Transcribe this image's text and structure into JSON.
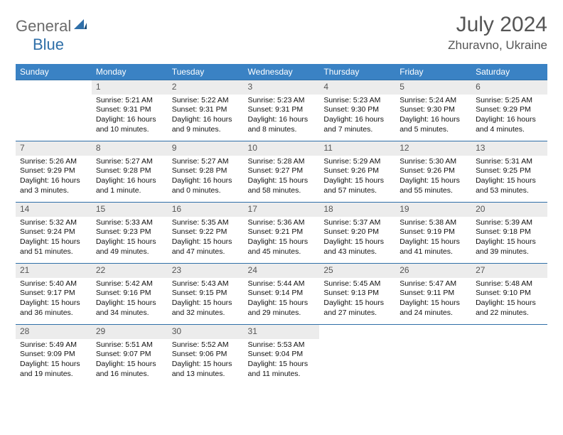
{
  "logo": {
    "text1": "General",
    "text2": "Blue"
  },
  "title": {
    "month": "July 2024",
    "location": "Zhuravno, Ukraine"
  },
  "weekdays": [
    "Sunday",
    "Monday",
    "Tuesday",
    "Wednesday",
    "Thursday",
    "Friday",
    "Saturday"
  ],
  "colors": {
    "header_bg": "#3a82c4",
    "daynum_bg": "#ececec",
    "border": "#2f6fa8"
  },
  "weeks": [
    [
      {
        "num": "",
        "sunrise": "",
        "sunset": "",
        "daylight": ""
      },
      {
        "num": "1",
        "sunrise": "Sunrise: 5:21 AM",
        "sunset": "Sunset: 9:31 PM",
        "daylight": "Daylight: 16 hours and 10 minutes."
      },
      {
        "num": "2",
        "sunrise": "Sunrise: 5:22 AM",
        "sunset": "Sunset: 9:31 PM",
        "daylight": "Daylight: 16 hours and 9 minutes."
      },
      {
        "num": "3",
        "sunrise": "Sunrise: 5:23 AM",
        "sunset": "Sunset: 9:31 PM",
        "daylight": "Daylight: 16 hours and 8 minutes."
      },
      {
        "num": "4",
        "sunrise": "Sunrise: 5:23 AM",
        "sunset": "Sunset: 9:30 PM",
        "daylight": "Daylight: 16 hours and 7 minutes."
      },
      {
        "num": "5",
        "sunrise": "Sunrise: 5:24 AM",
        "sunset": "Sunset: 9:30 PM",
        "daylight": "Daylight: 16 hours and 5 minutes."
      },
      {
        "num": "6",
        "sunrise": "Sunrise: 5:25 AM",
        "sunset": "Sunset: 9:29 PM",
        "daylight": "Daylight: 16 hours and 4 minutes."
      }
    ],
    [
      {
        "num": "7",
        "sunrise": "Sunrise: 5:26 AM",
        "sunset": "Sunset: 9:29 PM",
        "daylight": "Daylight: 16 hours and 3 minutes."
      },
      {
        "num": "8",
        "sunrise": "Sunrise: 5:27 AM",
        "sunset": "Sunset: 9:28 PM",
        "daylight": "Daylight: 16 hours and 1 minute."
      },
      {
        "num": "9",
        "sunrise": "Sunrise: 5:27 AM",
        "sunset": "Sunset: 9:28 PM",
        "daylight": "Daylight: 16 hours and 0 minutes."
      },
      {
        "num": "10",
        "sunrise": "Sunrise: 5:28 AM",
        "sunset": "Sunset: 9:27 PM",
        "daylight": "Daylight: 15 hours and 58 minutes."
      },
      {
        "num": "11",
        "sunrise": "Sunrise: 5:29 AM",
        "sunset": "Sunset: 9:26 PM",
        "daylight": "Daylight: 15 hours and 57 minutes."
      },
      {
        "num": "12",
        "sunrise": "Sunrise: 5:30 AM",
        "sunset": "Sunset: 9:26 PM",
        "daylight": "Daylight: 15 hours and 55 minutes."
      },
      {
        "num": "13",
        "sunrise": "Sunrise: 5:31 AM",
        "sunset": "Sunset: 9:25 PM",
        "daylight": "Daylight: 15 hours and 53 minutes."
      }
    ],
    [
      {
        "num": "14",
        "sunrise": "Sunrise: 5:32 AM",
        "sunset": "Sunset: 9:24 PM",
        "daylight": "Daylight: 15 hours and 51 minutes."
      },
      {
        "num": "15",
        "sunrise": "Sunrise: 5:33 AM",
        "sunset": "Sunset: 9:23 PM",
        "daylight": "Daylight: 15 hours and 49 minutes."
      },
      {
        "num": "16",
        "sunrise": "Sunrise: 5:35 AM",
        "sunset": "Sunset: 9:22 PM",
        "daylight": "Daylight: 15 hours and 47 minutes."
      },
      {
        "num": "17",
        "sunrise": "Sunrise: 5:36 AM",
        "sunset": "Sunset: 9:21 PM",
        "daylight": "Daylight: 15 hours and 45 minutes."
      },
      {
        "num": "18",
        "sunrise": "Sunrise: 5:37 AM",
        "sunset": "Sunset: 9:20 PM",
        "daylight": "Daylight: 15 hours and 43 minutes."
      },
      {
        "num": "19",
        "sunrise": "Sunrise: 5:38 AM",
        "sunset": "Sunset: 9:19 PM",
        "daylight": "Daylight: 15 hours and 41 minutes."
      },
      {
        "num": "20",
        "sunrise": "Sunrise: 5:39 AM",
        "sunset": "Sunset: 9:18 PM",
        "daylight": "Daylight: 15 hours and 39 minutes."
      }
    ],
    [
      {
        "num": "21",
        "sunrise": "Sunrise: 5:40 AM",
        "sunset": "Sunset: 9:17 PM",
        "daylight": "Daylight: 15 hours and 36 minutes."
      },
      {
        "num": "22",
        "sunrise": "Sunrise: 5:42 AM",
        "sunset": "Sunset: 9:16 PM",
        "daylight": "Daylight: 15 hours and 34 minutes."
      },
      {
        "num": "23",
        "sunrise": "Sunrise: 5:43 AM",
        "sunset": "Sunset: 9:15 PM",
        "daylight": "Daylight: 15 hours and 32 minutes."
      },
      {
        "num": "24",
        "sunrise": "Sunrise: 5:44 AM",
        "sunset": "Sunset: 9:14 PM",
        "daylight": "Daylight: 15 hours and 29 minutes."
      },
      {
        "num": "25",
        "sunrise": "Sunrise: 5:45 AM",
        "sunset": "Sunset: 9:13 PM",
        "daylight": "Daylight: 15 hours and 27 minutes."
      },
      {
        "num": "26",
        "sunrise": "Sunrise: 5:47 AM",
        "sunset": "Sunset: 9:11 PM",
        "daylight": "Daylight: 15 hours and 24 minutes."
      },
      {
        "num": "27",
        "sunrise": "Sunrise: 5:48 AM",
        "sunset": "Sunset: 9:10 PM",
        "daylight": "Daylight: 15 hours and 22 minutes."
      }
    ],
    [
      {
        "num": "28",
        "sunrise": "Sunrise: 5:49 AM",
        "sunset": "Sunset: 9:09 PM",
        "daylight": "Daylight: 15 hours and 19 minutes."
      },
      {
        "num": "29",
        "sunrise": "Sunrise: 5:51 AM",
        "sunset": "Sunset: 9:07 PM",
        "daylight": "Daylight: 15 hours and 16 minutes."
      },
      {
        "num": "30",
        "sunrise": "Sunrise: 5:52 AM",
        "sunset": "Sunset: 9:06 PM",
        "daylight": "Daylight: 15 hours and 13 minutes."
      },
      {
        "num": "31",
        "sunrise": "Sunrise: 5:53 AM",
        "sunset": "Sunset: 9:04 PM",
        "daylight": "Daylight: 15 hours and 11 minutes."
      },
      {
        "num": "",
        "sunrise": "",
        "sunset": "",
        "daylight": ""
      },
      {
        "num": "",
        "sunrise": "",
        "sunset": "",
        "daylight": ""
      },
      {
        "num": "",
        "sunrise": "",
        "sunset": "",
        "daylight": ""
      }
    ]
  ]
}
